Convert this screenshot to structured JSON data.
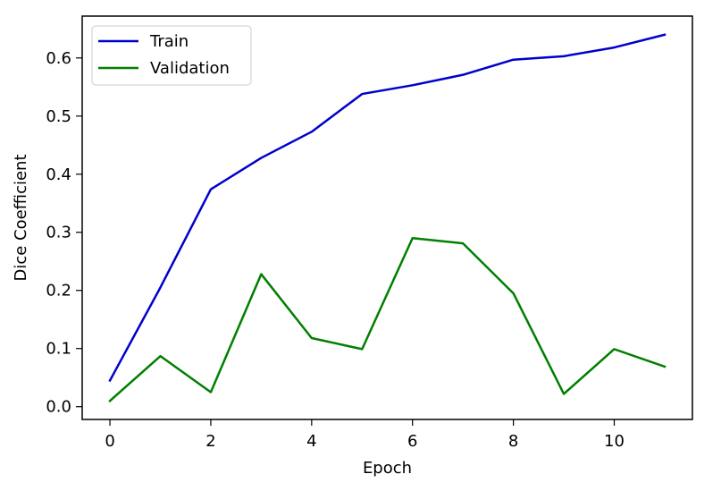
{
  "chart_data": {
    "type": "line",
    "title": "",
    "xlabel": "Epoch",
    "ylabel": "Dice Coefficient",
    "xlim": [
      -0.55,
      11.55
    ],
    "ylim": [
      -0.022,
      0.672
    ],
    "xticks": [
      0,
      2,
      4,
      6,
      8,
      10
    ],
    "xtick_labels": [
      "0",
      "2",
      "4",
      "6",
      "8",
      "10"
    ],
    "yticks": [
      0.0,
      0.1,
      0.2,
      0.3,
      0.4,
      0.5,
      0.6
    ],
    "ytick_labels": [
      "0.0",
      "0.1",
      "0.2",
      "0.3",
      "0.4",
      "0.5",
      "0.6"
    ],
    "grid": false,
    "legend_position": "top-left",
    "x": [
      0,
      1,
      2,
      3,
      4,
      5,
      6,
      7,
      8,
      9,
      10,
      11
    ],
    "series": [
      {
        "name": "Train",
        "color": "#0000cc",
        "values": [
          0.045,
          0.205,
          0.374,
          0.428,
          0.473,
          0.538,
          0.553,
          0.571,
          0.597,
          0.603,
          0.618,
          0.64
        ]
      },
      {
        "name": "Validation",
        "color": "#007f00",
        "values": [
          0.01,
          0.087,
          0.025,
          0.228,
          0.118,
          0.099,
          0.29,
          0.281,
          0.195,
          0.022,
          0.099,
          0.069
        ]
      }
    ]
  }
}
